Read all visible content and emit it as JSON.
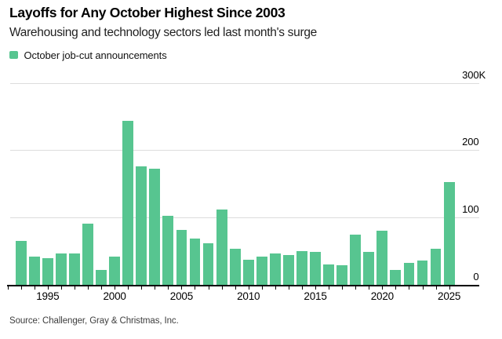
{
  "header": {
    "title": "Layoffs for Any October Highest Since 2003",
    "subtitle": "Warehousing and technology sectors led last month's surge"
  },
  "legend": {
    "label": "October job-cut announcements",
    "swatch_color": "#57c590"
  },
  "footer": {
    "source": "Source: Challenger, Gray & Christmas, Inc."
  },
  "colors": {
    "bar": "#57c590",
    "gridline": "#dcdcdc",
    "axis": "#000000",
    "background": "#ffffff"
  },
  "chart_data": {
    "type": "bar",
    "title": "Layoffs for Any October Highest Since 2003",
    "subtitle": "Warehousing and technology sectors led last month's surge",
    "series_name": "October job-cut announcements",
    "unit": "thousands of announced job cuts",
    "categories": [
      1993,
      1994,
      1995,
      1996,
      1997,
      1998,
      1999,
      2000,
      2001,
      2002,
      2003,
      2004,
      2005,
      2006,
      2007,
      2008,
      2009,
      2010,
      2011,
      2012,
      2013,
      2014,
      2015,
      2016,
      2017,
      2018,
      2019,
      2020,
      2021,
      2022,
      2023,
      2024,
      2025
    ],
    "values": [
      65,
      42,
      40,
      47,
      47,
      91,
      22,
      42,
      243,
      176,
      172,
      102,
      81,
      69,
      62,
      112,
      54,
      37,
      42,
      47,
      44,
      50,
      49,
      30,
      29,
      75,
      49,
      80,
      22,
      33,
      36,
      54,
      153
    ],
    "x_tick_labels": [
      "1995",
      "2000",
      "2005",
      "2010",
      "2015",
      "2020",
      "2025"
    ],
    "y_ticks": [
      {
        "value": 0,
        "label": "0"
      },
      {
        "value": 100,
        "label": "100"
      },
      {
        "value": 200,
        "label": "200"
      },
      {
        "value": 300,
        "label": "300K"
      }
    ],
    "ylim": [
      0,
      300
    ],
    "grid": "horizontal-only",
    "legend_position": "top-left",
    "y_axis_side": "right"
  }
}
